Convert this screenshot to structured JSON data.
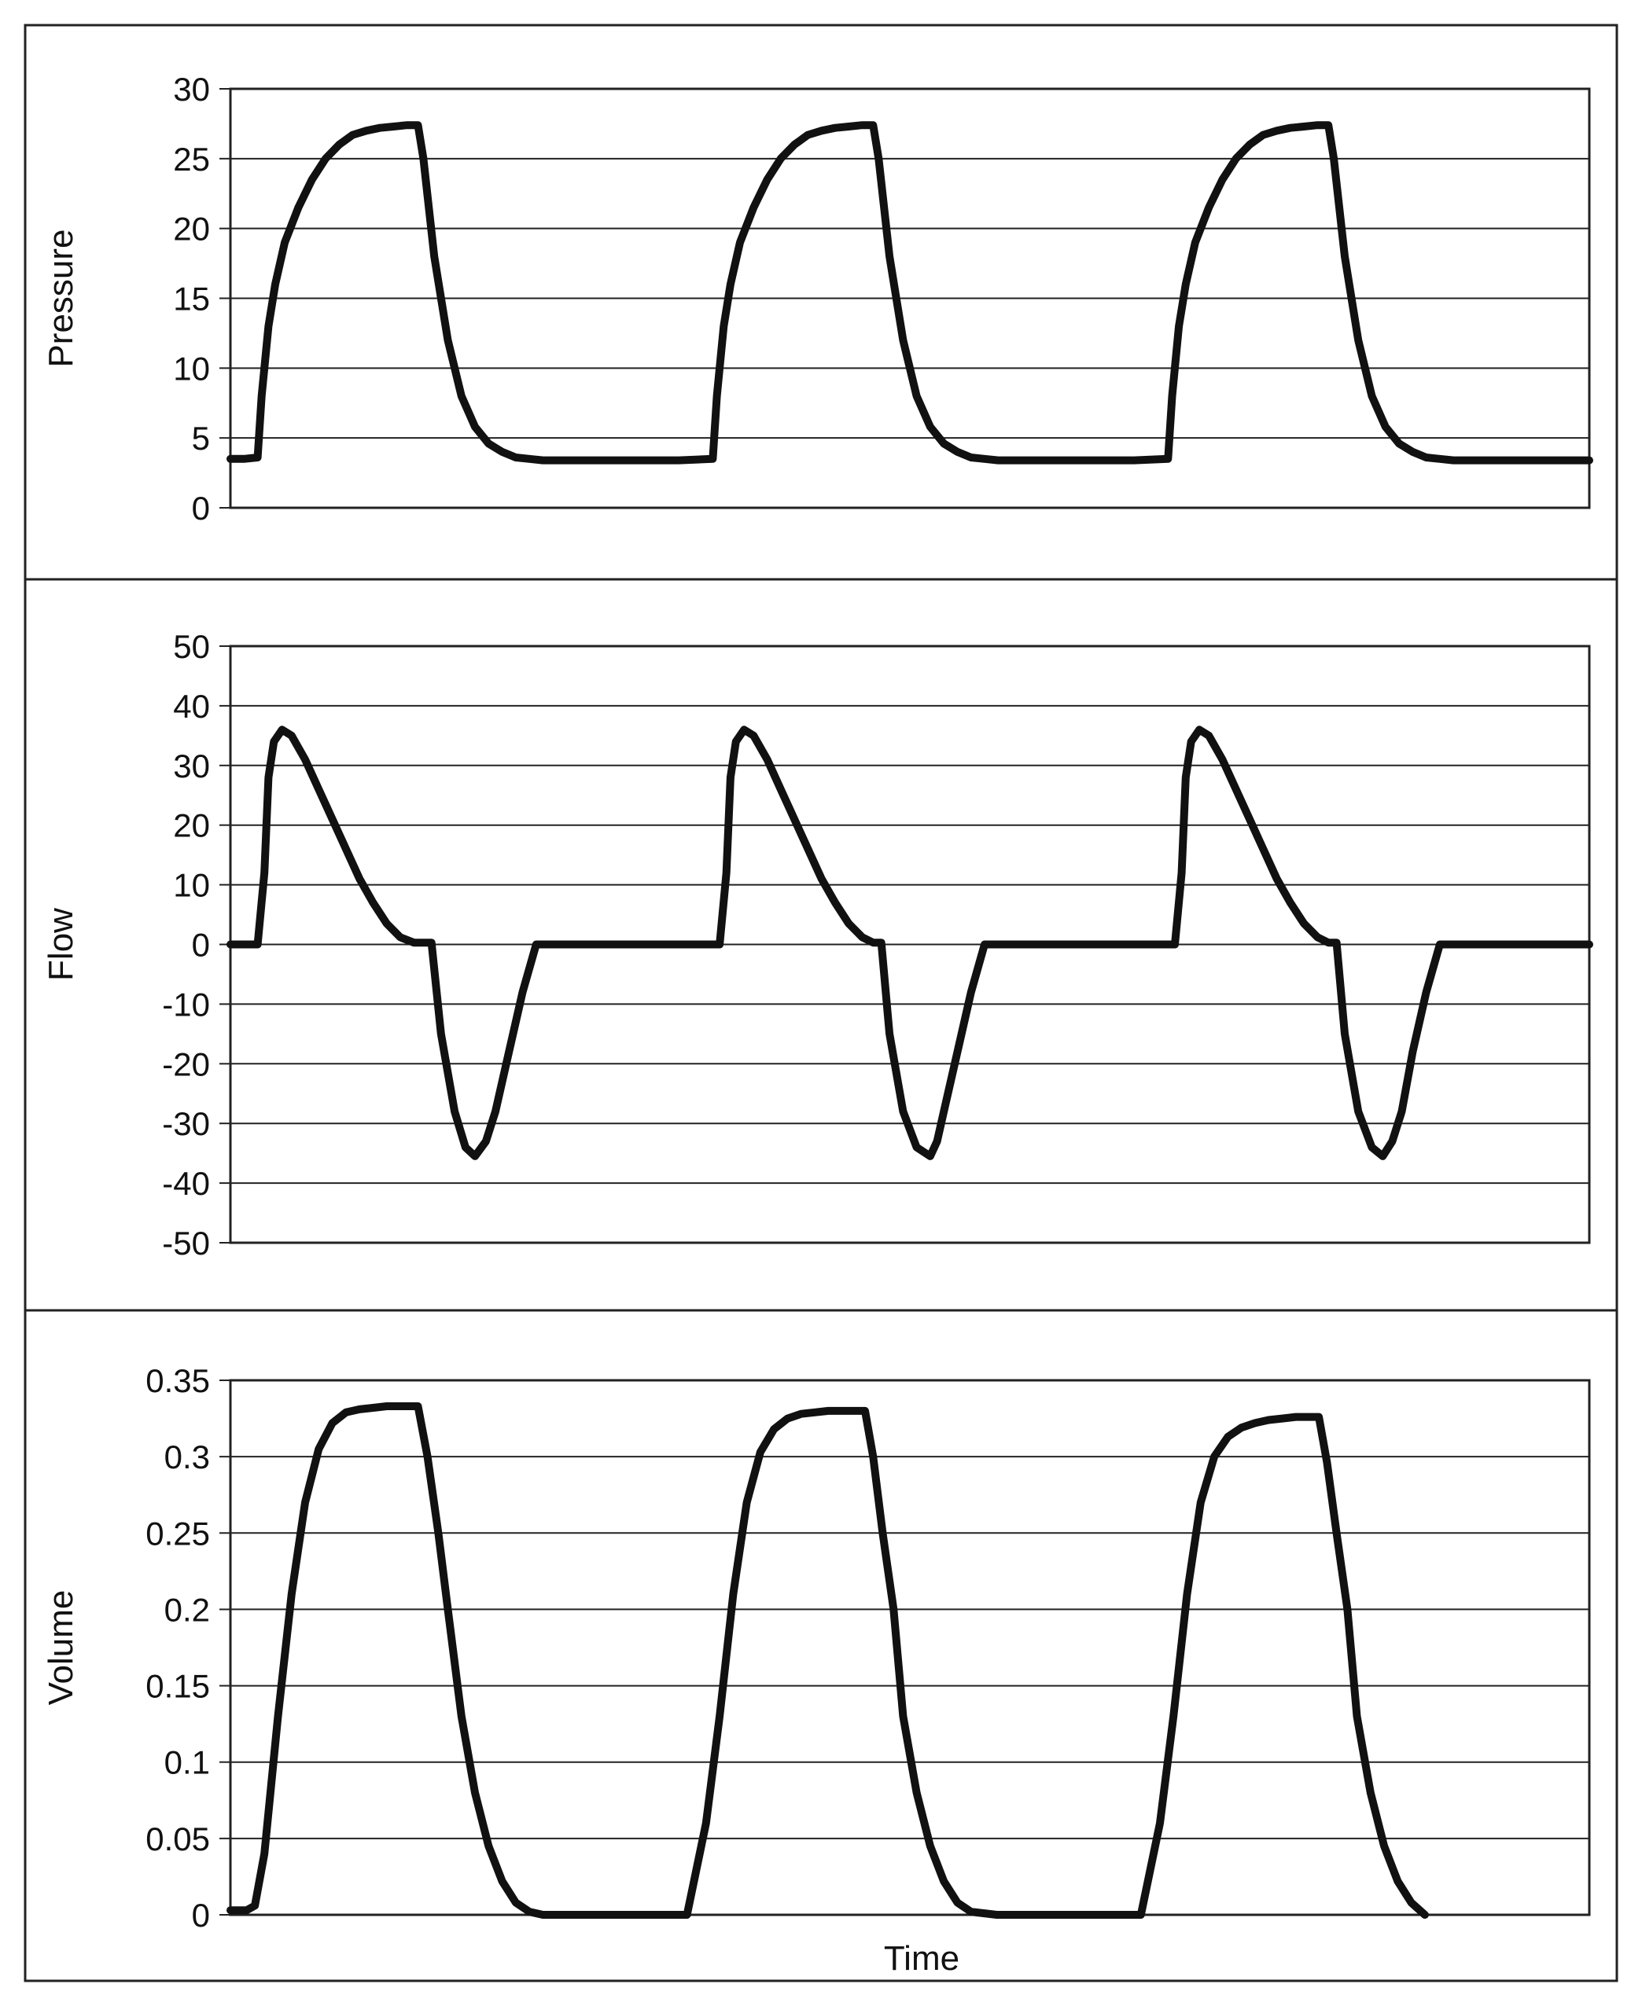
{
  "chart_data": [
    {
      "type": "line",
      "ylabel": "Pressure",
      "xlabel": "",
      "ylim": [
        0,
        30
      ],
      "yticks": [
        0,
        5,
        10,
        15,
        20,
        25,
        30
      ],
      "grid": true,
      "legend": "none",
      "x": [
        0,
        1,
        2,
        2.3,
        2.8,
        3.3,
        4,
        5,
        6,
        7,
        8,
        9,
        10,
        11,
        12,
        13,
        13.8,
        14.2,
        15,
        16,
        17,
        18,
        19,
        20,
        21,
        22,
        23,
        25,
        30,
        33,
        35.5,
        35.8,
        36.3,
        36.8,
        37.5,
        38.5,
        39.5,
        40.5,
        41.5,
        42.5,
        43.5,
        44.5,
        45.5,
        46.5,
        47.3,
        47.7,
        48.5,
        49.5,
        50.5,
        51.5,
        52.5,
        53.5,
        54.5,
        55.5,
        56.5,
        58.5,
        63.5,
        66.5,
        69,
        69.3,
        69.8,
        70.3,
        71,
        72,
        73,
        74,
        75,
        76,
        77,
        78,
        79,
        80,
        80.8,
        81.2,
        82,
        83,
        84,
        85,
        86,
        87,
        88,
        89,
        90,
        92,
        97,
        100
      ],
      "series": [
        {
          "values": [
            3.5,
            3.5,
            3.6,
            8,
            13,
            16,
            19,
            21.5,
            23.5,
            25,
            26,
            26.7,
            27,
            27.2,
            27.3,
            27.4,
            27.4,
            25,
            18,
            12,
            8,
            5.8,
            4.6,
            4,
            3.6,
            3.5,
            3.4,
            3.4,
            3.4,
            3.4,
            3.5,
            8,
            13,
            16,
            19,
            21.5,
            23.5,
            25,
            26,
            26.7,
            27,
            27.2,
            27.3,
            27.4,
            27.4,
            25,
            18,
            12,
            8,
            5.8,
            4.6,
            4,
            3.6,
            3.5,
            3.4,
            3.4,
            3.4,
            3.4,
            3.5,
            8,
            13,
            16,
            19,
            21.5,
            23.5,
            25,
            26,
            26.7,
            27,
            27.2,
            27.3,
            27.4,
            27.4,
            25,
            18,
            12,
            8,
            5.8,
            4.6,
            4,
            3.6,
            3.5,
            3.4,
            3.4,
            3.4,
            3.4
          ]
        }
      ]
    },
    {
      "type": "line",
      "ylabel": "Flow",
      "xlabel": "",
      "ylim": [
        -50,
        50
      ],
      "yticks": [
        -50,
        -40,
        -30,
        -20,
        -10,
        0,
        10,
        20,
        30,
        40,
        50
      ],
      "grid": true,
      "legend": "none",
      "x": [
        0,
        1.5,
        2,
        2.5,
        2.8,
        3.2,
        3.8,
        4.5,
        5.5,
        6.5,
        7.5,
        8.5,
        9.5,
        10.5,
        11.5,
        12.5,
        13.5,
        13.8,
        14.2,
        14.8,
        15.5,
        16.5,
        17.3,
        18,
        18.8,
        19.5,
        20.5,
        21.5,
        22.5,
        25,
        30,
        35,
        35.5,
        36,
        36.5,
        36.8,
        37.2,
        37.8,
        38.5,
        39.5,
        40.5,
        41.5,
        42.5,
        43.5,
        44.5,
        45.5,
        46.5,
        47.3,
        47.6,
        47.9,
        48.5,
        49.5,
        50.5,
        51.5,
        52,
        52.5,
        53.5,
        54.5,
        55.5,
        60,
        65,
        68.5,
        69,
        69.5,
        70,
        70.3,
        70.7,
        71.3,
        72,
        73,
        74,
        75,
        76,
        77,
        78,
        79,
        80,
        80.8,
        81.1,
        81.4,
        82,
        83,
        84,
        84.8,
        85.5,
        86.2,
        87,
        88,
        89,
        92,
        97,
        100
      ],
      "series": [
        {
          "values": [
            0,
            0,
            0,
            12,
            28,
            34,
            36,
            35,
            31,
            26,
            21,
            16,
            11,
            7,
            3.5,
            1.2,
            0.3,
            0.3,
            0.3,
            0.3,
            -15,
            -28,
            -34,
            -35.5,
            -33,
            -28,
            -18,
            -8,
            0,
            0,
            0,
            0,
            0,
            0,
            12,
            28,
            34,
            36,
            35,
            31,
            26,
            21,
            16,
            11,
            7,
            3.5,
            1.2,
            0.3,
            0.3,
            0.3,
            -15,
            -28,
            -34,
            -35.5,
            -33,
            -28,
            -18,
            -8,
            0,
            0,
            0,
            0,
            0,
            0,
            12,
            28,
            34,
            36,
            35,
            31,
            26,
            21,
            16,
            11,
            7,
            3.5,
            1.2,
            0.3,
            0.3,
            0.3,
            -15,
            -28,
            -34,
            -35.5,
            -33,
            -28,
            -18,
            -8,
            0,
            0,
            0,
            0
          ]
        }
      ]
    },
    {
      "type": "line",
      "ylabel": "Volume",
      "xlabel": "Time",
      "ylim": [
        0,
        0.35
      ],
      "yticks": [
        0,
        0.05,
        0.1,
        0.15,
        0.2,
        0.25,
        0.3,
        0.35
      ],
      "grid": true,
      "legend": "none",
      "x": [
        0,
        1.2,
        1.8,
        2.5,
        3.5,
        4.5,
        5.5,
        6.5,
        7.5,
        8.5,
        9.5,
        10.5,
        11.5,
        12.5,
        13.2,
        13.8,
        14.5,
        15.3,
        16,
        17,
        18,
        19,
        20,
        21,
        22,
        23,
        33.6,
        35,
        36,
        37,
        38,
        39,
        40,
        41,
        42,
        43,
        44,
        45,
        46,
        46.7,
        47.3,
        48,
        48.8,
        49.5,
        50.5,
        51.5,
        52.5,
        53.5,
        54.5,
        56.4,
        67,
        68.4,
        69.4,
        70.4,
        71.4,
        72.4,
        73.4,
        74.4,
        75.4,
        76.4,
        77.4,
        78.4,
        79.4,
        80.1,
        80.7,
        81.4,
        82.2,
        82.9,
        83.9,
        84.9,
        85.9,
        86.9,
        87.9
      ],
      "series": [
        {
          "values": [
            0.003,
            0.003,
            0.006,
            0.04,
            0.13,
            0.21,
            0.27,
            0.305,
            0.322,
            0.329,
            0.331,
            0.332,
            0.333,
            0.333,
            0.333,
            0.333,
            0.3,
            0.25,
            0.2,
            0.13,
            0.08,
            0.045,
            0.022,
            0.008,
            0.002,
            0,
            0,
            0.06,
            0.13,
            0.21,
            0.27,
            0.303,
            0.318,
            0.325,
            0.328,
            0.329,
            0.33,
            0.33,
            0.33,
            0.33,
            0.3,
            0.25,
            0.2,
            0.13,
            0.08,
            0.045,
            0.022,
            0.008,
            0.002,
            0,
            0,
            0.06,
            0.13,
            0.21,
            0.27,
            0.3,
            0.313,
            0.319,
            0.322,
            0.324,
            0.325,
            0.326,
            0.326,
            0.326,
            0.296,
            0.25,
            0.2,
            0.13,
            0.08,
            0.045,
            0.022,
            0.008,
            0
          ]
        }
      ]
    }
  ]
}
